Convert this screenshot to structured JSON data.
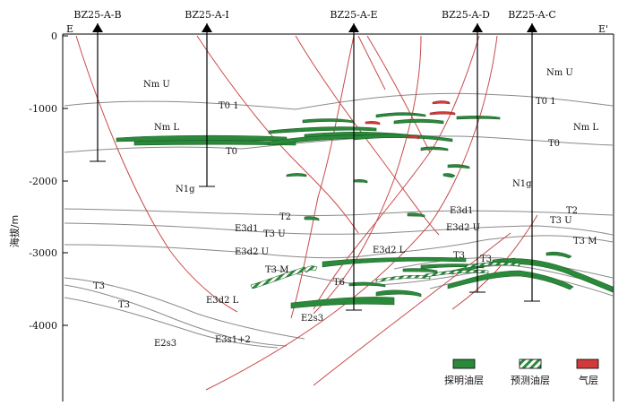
{
  "section": {
    "left_end": "E",
    "right_end": "E'"
  },
  "wells": [
    {
      "name": "BZ25-A-B"
    },
    {
      "name": "BZ25-A-I"
    },
    {
      "name": "BZ25-A-E"
    },
    {
      "name": "BZ25-A-D"
    },
    {
      "name": "BZ25-A-C"
    }
  ],
  "axis": {
    "label": "海拔/m",
    "ticks": [
      "0",
      "-1000",
      "-2000",
      "-3000",
      "-4000"
    ]
  },
  "labels": {
    "nmu_left": "Nm U",
    "nmu_right": "Nm U",
    "t0_1_left": "T0 1",
    "t0_1_right": "T0 1",
    "nml_left": "Nm L",
    "nml_right": "Nm L",
    "t0_left": "T0",
    "t0_right": "T0",
    "n1g_left": "N1g",
    "n1g_right": "N1g",
    "t2_left": "T2",
    "t2_right": "T2",
    "e3d1_left": "E3d1",
    "e3d1_right": "E3d1",
    "t3u_left": "T3 U",
    "t3u_right": "T3 U",
    "e3d2u_left": "E3d2 U",
    "e3d2u_right": "E3d2 U",
    "t3m_left": "T3 M",
    "t3m_right": "T3 M",
    "e3d2l_center": "E3d2 L",
    "e3d2l_left": "E3d2 L",
    "t3_a": "T3",
    "t3_b": "T3",
    "t3_c": "T3",
    "t3_d": "T3",
    "t6": "T6",
    "e2s3_center": "E2s3",
    "e2s3_left": "E2s3",
    "e3s12": "E3s1+2"
  },
  "legend": {
    "oil": "探明油层",
    "predicted_oil": "预测油层",
    "gas": "气层"
  },
  "colors": {
    "oil": "#2a8a3a",
    "gas": "#d23a3a",
    "fault": "#c84a4a",
    "horizon": "#888888"
  }
}
